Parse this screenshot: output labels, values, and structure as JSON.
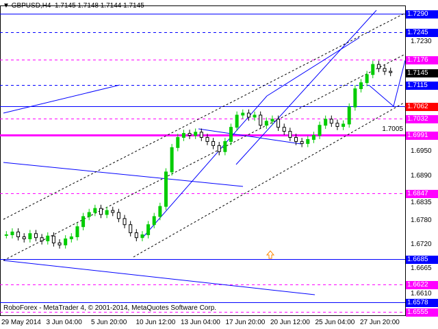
{
  "header": {
    "symbol": "GBPUSD,H4",
    "ohlc": "1.7145 1.7148 1.7144 1.7145"
  },
  "footer": {
    "copyright": "RoboForex - MetaTrader 4, © 2001-2014, MetaQuotes Software Corp."
  },
  "colors": {
    "bull": "#00cc00",
    "bear": "#000000",
    "blue": "#0000ff",
    "magenta": "#ff00ff",
    "red": "#ff0000"
  },
  "price_scale": {
    "ticks": [
      "1.7230",
      "1.7005",
      "1.6950",
      "1.6890",
      "1.6835",
      "1.6780",
      "1.6720",
      "1.6665",
      "1.6610"
    ]
  },
  "levels": [
    {
      "price": "1.7290",
      "color": "#0000ff",
      "style": "solid"
    },
    {
      "price": "1.7245",
      "color": "#0000ff",
      "style": "dashed"
    },
    {
      "price": "1.7176",
      "color": "#ff00ff",
      "style": "dashed"
    },
    {
      "price": "1.7145",
      "color": "#000000",
      "style": "none"
    },
    {
      "price": "1.7115",
      "color": "#0000ff",
      "style": "dashed"
    },
    {
      "price": "1.7062",
      "color": "#ff0000",
      "style": "solid"
    },
    {
      "price": "1.7032",
      "color": "#ff00ff",
      "style": "dashed"
    },
    {
      "price": "1.6991",
      "color": "#ff00ff",
      "style": "thick"
    },
    {
      "price": "1.6847",
      "color": "#ff00ff",
      "style": "dashed"
    },
    {
      "price": "1.6685",
      "color": "#0000ff",
      "style": "solid"
    },
    {
      "price": "1.6622",
      "color": "#ff00ff",
      "style": "dashed"
    },
    {
      "price": "1.6578",
      "color": "#0000ff",
      "style": "solid"
    },
    {
      "price": "1.6555",
      "color": "#ff00ff",
      "style": "dashed"
    }
  ],
  "time_axis": [
    "29 May 2014",
    "3 Jun 04:00",
    "5 Jun 20:00",
    "10 Jun 12:00",
    "13 Jun 04:00",
    "17 Jun 20:00",
    "20 Jun 12:00",
    "25 Jun 04:00",
    "27 Jun 20:00"
  ],
  "chart_data": {
    "type": "candlestick",
    "closes": [
      1.6745,
      1.6752,
      1.674,
      1.6735,
      1.6748,
      1.6738,
      1.673,
      1.6742,
      1.6725,
      1.672,
      1.6735,
      1.674,
      1.6765,
      1.679,
      1.68,
      1.681,
      1.6795,
      1.6805,
      1.68,
      1.6785,
      1.677,
      1.675,
      1.6738,
      1.6745,
      1.677,
      1.679,
      1.6815,
      1.69,
      1.696,
      1.6985,
      1.6995,
      1.699,
      1.6998,
      1.6985,
      1.6975,
      1.6965,
      1.695,
      1.6975,
      1.701,
      1.704,
      1.7045,
      1.7035,
      1.704,
      1.7015,
      1.7025,
      1.703,
      1.701,
      1.7,
      1.6985,
      1.6975,
      1.697,
      1.698,
      1.699,
      1.7015,
      1.703,
      1.702,
      1.7012,
      1.7018,
      1.706,
      1.7105,
      1.712,
      1.714,
      1.7165,
      1.7155,
      1.7148,
      1.7145
    ],
    "ylim": [
      1.6555,
      1.729
    ]
  }
}
